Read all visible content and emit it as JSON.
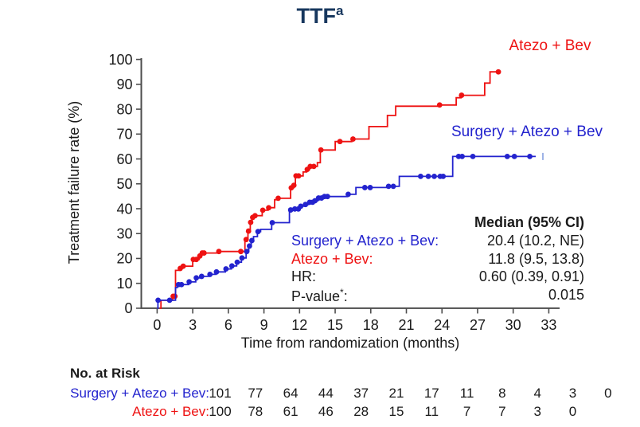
{
  "colors": {
    "title_navy": "#17375E",
    "red": "#EE1212",
    "blue": "#2323CE",
    "censor_light_blue": "#9DB3E6",
    "axis": "#4D4D4D",
    "text": "#1A1A1A"
  },
  "title": {
    "text": "TTF",
    "sup": "a"
  },
  "legend": {
    "atezo_bev": "Atezo + Bev",
    "surgery_atezo_bev": "Surgery + Atezo + Bev"
  },
  "stats": {
    "header": "Median (95% CI)",
    "rows": [
      {
        "pre": "Surgery + Atezo + Bev:",
        "sup": "",
        "post": "",
        "value": "20.4 (10.2, NE)",
        "color": "blue"
      },
      {
        "pre": "Atezo + Bev:",
        "sup": "",
        "post": "",
        "value": "11.8 (9.5, 13.8)",
        "color": "red"
      },
      {
        "pre": "HR:",
        "sup": "",
        "post": "",
        "value": "0.60 (0.39, 0.91)",
        "color": "text"
      },
      {
        "pre": "P-value",
        "sup": "*",
        "post": ":",
        "value": "0.015",
        "color": "text"
      }
    ]
  },
  "risk_table": {
    "title": "No. at Risk",
    "rows": [
      {
        "label": "Surgery + Atezo + Bev:",
        "color": "blue",
        "values": [
          "101",
          "77",
          "64",
          "44",
          "37",
          "21",
          "17",
          "11",
          "8",
          "4",
          "3",
          "0"
        ]
      },
      {
        "label": "Atezo + Bev:",
        "color": "red",
        "values": [
          "100",
          "78",
          "61",
          "46",
          "28",
          "15",
          "11",
          "7",
          "7",
          "3",
          "0"
        ]
      }
    ]
  },
  "chart_data": {
    "type": "line",
    "subtype": "kaplan-meier-step",
    "title": "TTFa",
    "xlabel": "Time from randomization (months)",
    "ylabel": "Treatment failure rate (%)",
    "xlim": [
      0,
      33
    ],
    "ylim": [
      0,
      100
    ],
    "xticks": [
      0,
      3,
      6,
      9,
      12,
      15,
      18,
      21,
      24,
      27,
      30,
      33
    ],
    "yticks": [
      0,
      10,
      20,
      30,
      40,
      50,
      60,
      70,
      80,
      90,
      100
    ],
    "grid": false,
    "series": [
      {
        "name": "Atezo + Bev",
        "color_key": "red",
        "median_95ci": "11.8 (9.5, 13.8)",
        "end_month": 28.75,
        "steps": [
          [
            0.2,
            0
          ],
          [
            0.32,
            3.2
          ],
          [
            1.3,
            4.8
          ],
          [
            1.55,
            15.2
          ],
          [
            1.9,
            16.0
          ],
          [
            2.15,
            16.9
          ],
          [
            3.0,
            19.6
          ],
          [
            3.55,
            21.0
          ],
          [
            3.75,
            22.2
          ],
          [
            5.15,
            22.8
          ],
          [
            7.4,
            27.6
          ],
          [
            7.65,
            31.0
          ],
          [
            7.85,
            34.5
          ],
          [
            8.0,
            36.5
          ],
          [
            8.2,
            37.2
          ],
          [
            8.85,
            39.4
          ],
          [
            9.35,
            40.4
          ],
          [
            9.9,
            43.6
          ],
          [
            10.15,
            44.2
          ],
          [
            11.25,
            48.4
          ],
          [
            11.5,
            49.4
          ],
          [
            11.65,
            53.2
          ],
          [
            12.3,
            54.8
          ],
          [
            12.6,
            55.8
          ],
          [
            12.85,
            57.0
          ],
          [
            13.5,
            58.5
          ],
          [
            13.75,
            63.6
          ],
          [
            15.0,
            67.0
          ],
          [
            16.4,
            68.0
          ],
          [
            17.85,
            73.0
          ],
          [
            19.4,
            77.5
          ],
          [
            20.1,
            81.2
          ],
          [
            23.8,
            81.7
          ],
          [
            25.2,
            84.6
          ],
          [
            25.6,
            85.6
          ],
          [
            27.6,
            90.5
          ],
          [
            28.05,
            95.0
          ]
        ],
        "dots": [
          [
            1.35,
            4.8
          ],
          [
            1.5,
            4.8
          ],
          [
            1.95,
            16.0
          ],
          [
            2.2,
            16.9
          ],
          [
            3.05,
            19.6
          ],
          [
            3.3,
            19.6
          ],
          [
            3.6,
            21.0
          ],
          [
            3.8,
            22.2
          ],
          [
            3.95,
            22.2
          ],
          [
            5.2,
            22.8
          ],
          [
            7.05,
            22.8
          ],
          [
            7.5,
            27.6
          ],
          [
            7.7,
            31.0
          ],
          [
            7.88,
            34.5
          ],
          [
            8.05,
            36.5
          ],
          [
            8.25,
            37.2
          ],
          [
            8.9,
            39.4
          ],
          [
            9.4,
            40.4
          ],
          [
            10.2,
            44.2
          ],
          [
            11.3,
            48.4
          ],
          [
            11.52,
            49.4
          ],
          [
            11.7,
            53.2
          ],
          [
            11.92,
            53.2
          ],
          [
            12.65,
            55.8
          ],
          [
            12.9,
            57.0
          ],
          [
            13.2,
            57.0
          ],
          [
            13.8,
            63.6
          ],
          [
            15.4,
            67.0
          ],
          [
            16.5,
            68.0
          ],
          [
            23.8,
            81.7
          ],
          [
            25.65,
            85.6
          ],
          [
            28.75,
            95.0
          ]
        ]
      },
      {
        "name": "Surgery + Atezo + Bev",
        "color_key": "blue",
        "median_95ci": "20.4 (10.2, NE)",
        "end_month": 31.9,
        "censor_tick": [
          32.5,
          61.0
        ],
        "steps": [
          [
            0,
            0
          ],
          [
            0.07,
            3.2
          ],
          [
            1.55,
            8.3
          ],
          [
            1.7,
            9.5
          ],
          [
            2.65,
            10.6
          ],
          [
            3.25,
            12.2
          ],
          [
            3.7,
            12.8
          ],
          [
            4.35,
            13.6
          ],
          [
            4.95,
            14.6
          ],
          [
            5.75,
            15.8
          ],
          [
            6.25,
            17.0
          ],
          [
            6.7,
            18.5
          ],
          [
            7.1,
            20.2
          ],
          [
            7.5,
            22.8
          ],
          [
            7.72,
            25.0
          ],
          [
            7.93,
            27.2
          ],
          [
            8.12,
            28.8
          ],
          [
            8.45,
            30.8
          ],
          [
            8.72,
            31.7
          ],
          [
            9.65,
            34.4
          ],
          [
            11.15,
            39.5
          ],
          [
            11.55,
            39.9
          ],
          [
            12.05,
            41.0
          ],
          [
            12.45,
            41.7
          ],
          [
            12.75,
            42.6
          ],
          [
            13.25,
            43.2
          ],
          [
            13.55,
            44.3
          ],
          [
            14.0,
            44.9
          ],
          [
            16.05,
            45.8
          ],
          [
            16.75,
            48.5
          ],
          [
            19.4,
            49.0
          ],
          [
            20.4,
            53.0
          ],
          [
            24.9,
            61.0
          ]
        ],
        "dots": [
          [
            0.08,
            3.2
          ],
          [
            1.05,
            3.2
          ],
          [
            1.8,
            9.5
          ],
          [
            2.05,
            9.5
          ],
          [
            2.7,
            10.6
          ],
          [
            3.3,
            12.2
          ],
          [
            3.75,
            12.8
          ],
          [
            4.45,
            13.6
          ],
          [
            5.0,
            14.6
          ],
          [
            5.8,
            15.8
          ],
          [
            6.3,
            17.0
          ],
          [
            6.75,
            18.5
          ],
          [
            7.15,
            20.2
          ],
          [
            7.55,
            22.8
          ],
          [
            7.78,
            25.0
          ],
          [
            7.98,
            27.2
          ],
          [
            8.5,
            30.8
          ],
          [
            9.7,
            34.4
          ],
          [
            11.25,
            39.5
          ],
          [
            11.6,
            39.9
          ],
          [
            11.9,
            39.9
          ],
          [
            12.1,
            41.0
          ],
          [
            12.5,
            41.7
          ],
          [
            12.85,
            42.6
          ],
          [
            13.1,
            42.6
          ],
          [
            13.3,
            43.2
          ],
          [
            13.6,
            44.3
          ],
          [
            13.85,
            44.3
          ],
          [
            14.1,
            44.9
          ],
          [
            14.35,
            44.9
          ],
          [
            16.1,
            45.8
          ],
          [
            17.5,
            48.5
          ],
          [
            17.95,
            48.5
          ],
          [
            19.5,
            49.0
          ],
          [
            19.9,
            49.0
          ],
          [
            22.2,
            53.0
          ],
          [
            22.85,
            53.0
          ],
          [
            23.35,
            53.0
          ],
          [
            23.85,
            53.0
          ],
          [
            24.1,
            53.0
          ],
          [
            25.4,
            61.0
          ],
          [
            25.7,
            61.0
          ],
          [
            26.6,
            61.0
          ],
          [
            29.5,
            61.0
          ],
          [
            30.1,
            61.0
          ],
          [
            31.4,
            61.0
          ]
        ]
      }
    ],
    "legend_position": "inline-labels"
  }
}
